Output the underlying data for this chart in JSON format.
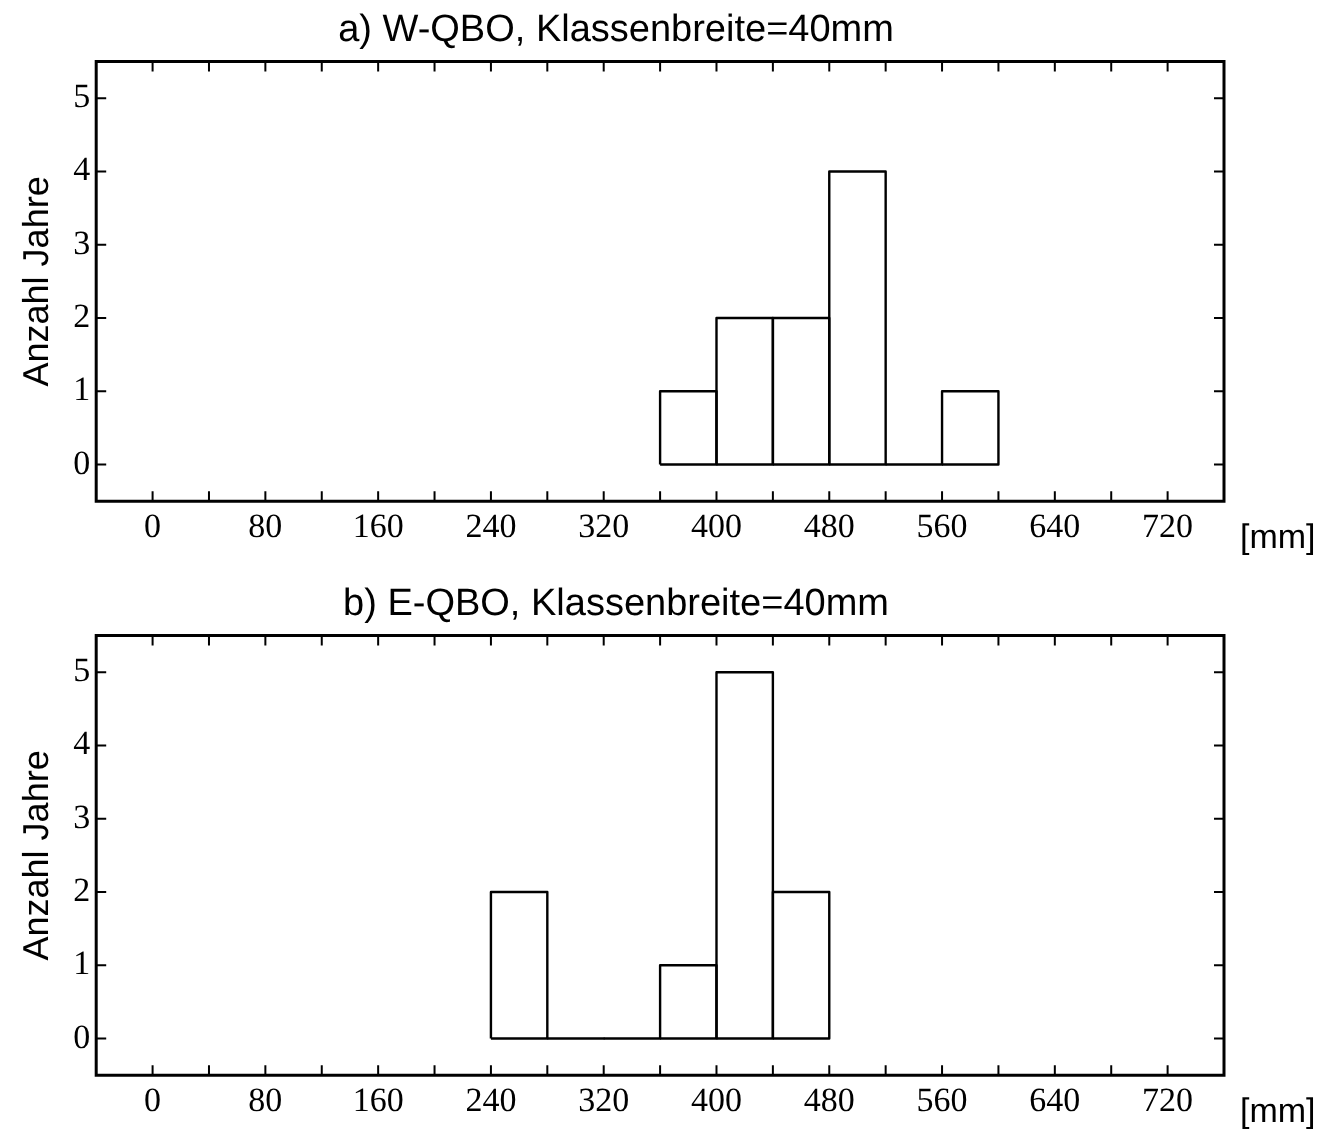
{
  "chart_data": [
    {
      "type": "histogram",
      "title": "a) W-QBO, Klassenbreite=40mm",
      "xlabel": "[mm]",
      "ylabel": "Anzahl Jahre",
      "bins": [
        360,
        400,
        440,
        480,
        520,
        560,
        600
      ],
      "values": [
        1,
        2,
        2,
        4,
        0,
        1
      ],
      "color": "#ffffff",
      "xlim": [
        -40,
        760
      ],
      "ylim": [
        -0.5,
        5.5
      ],
      "xticks": [
        0,
        {
          "value": 40,
          "label": null
        },
        80,
        {
          "value": 120,
          "label": null
        },
        160,
        {
          "value": 200,
          "label": null
        },
        240,
        {
          "value": 280,
          "label": null
        },
        320,
        {
          "value": 360,
          "label": null
        },
        400,
        {
          "value": 440,
          "label": null
        },
        480,
        {
          "value": 520,
          "label": null
        },
        560,
        {
          "value": 600,
          "label": null
        },
        640,
        {
          "value": 680,
          "label": null
        },
        720
      ],
      "yticks": [
        0,
        1,
        2,
        3,
        4,
        5
      ],
      "grid": false,
      "legend": false
    },
    {
      "type": "histogram",
      "title": "b) E-QBO, Klassenbreite=40mm",
      "xlabel": "[mm]",
      "ylabel": "Anzahl Jahre",
      "bins": [
        240,
        280,
        320,
        360,
        400,
        440,
        480
      ],
      "values": [
        2,
        0,
        0,
        1,
        5,
        2
      ],
      "color": "#ffffff",
      "xlim": [
        -40,
        760
      ],
      "ylim": [
        -0.5,
        5.5
      ],
      "xticks": [
        0,
        {
          "value": 40,
          "label": null
        },
        80,
        {
          "value": 120,
          "label": null
        },
        160,
        {
          "value": 200,
          "label": null
        },
        240,
        {
          "value": 280,
          "label": null
        },
        320,
        {
          "value": 360,
          "label": null
        },
        400,
        {
          "value": 440,
          "label": null
        },
        480,
        {
          "value": 520,
          "label": null
        },
        560,
        {
          "value": 600,
          "label": null
        },
        640,
        {
          "value": 680,
          "label": null
        },
        720
      ],
      "yticks": [
        0,
        1,
        2,
        3,
        4,
        5
      ],
      "grid": false,
      "legend": false
    }
  ]
}
